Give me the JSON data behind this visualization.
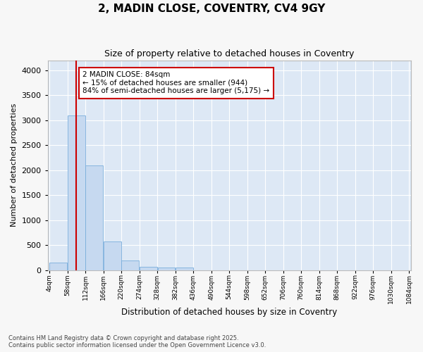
{
  "title1": "2, MADIN CLOSE, COVENTRY, CV4 9GY",
  "title2": "Size of property relative to detached houses in Coventry",
  "xlabel": "Distribution of detached houses by size in Coventry",
  "ylabel": "Number of detached properties",
  "bar_color": "#c6d9f0",
  "bar_edge_color": "#7aaedc",
  "bg_color": "#dde8f5",
  "fig_color": "#f7f7f7",
  "grid_color": "#ffffff",
  "property_size": 84,
  "annotation_title": "2 MADIN CLOSE: 84sqm",
  "annotation_line1": "← 15% of detached houses are smaller (944)",
  "annotation_line2": "84% of semi-detached houses are larger (5,175) →",
  "annotation_box_color": "#ffffff",
  "annotation_box_edge": "#cc0000",
  "red_line_color": "#cc0000",
  "footer_line1": "Contains HM Land Registry data © Crown copyright and database right 2025.",
  "footer_line2": "Contains public sector information licensed under the Open Government Licence v3.0.",
  "bin_edges": [
    4,
    58,
    112,
    166,
    220,
    274,
    328,
    382,
    436,
    490,
    544,
    598,
    652,
    706,
    760,
    814,
    868,
    922,
    976,
    1030,
    1084
  ],
  "tick_labels": [
    "4sqm",
    "58sqm",
    "112sqm",
    "166sqm",
    "220sqm",
    "274sqm",
    "328sqm",
    "382sqm",
    "436sqm",
    "490sqm",
    "544sqm",
    "598sqm",
    "652sqm",
    "706sqm",
    "760sqm",
    "814sqm",
    "868sqm",
    "922sqm",
    "976sqm",
    "1030sqm",
    "1084sqm"
  ],
  "values": [
    150,
    3100,
    2100,
    580,
    200,
    70,
    50,
    50,
    0,
    0,
    0,
    0,
    0,
    0,
    0,
    0,
    0,
    0,
    0,
    0
  ],
  "ylim": [
    0,
    4200
  ],
  "yticks": [
    0,
    500,
    1000,
    1500,
    2000,
    2500,
    3000,
    3500,
    4000
  ]
}
